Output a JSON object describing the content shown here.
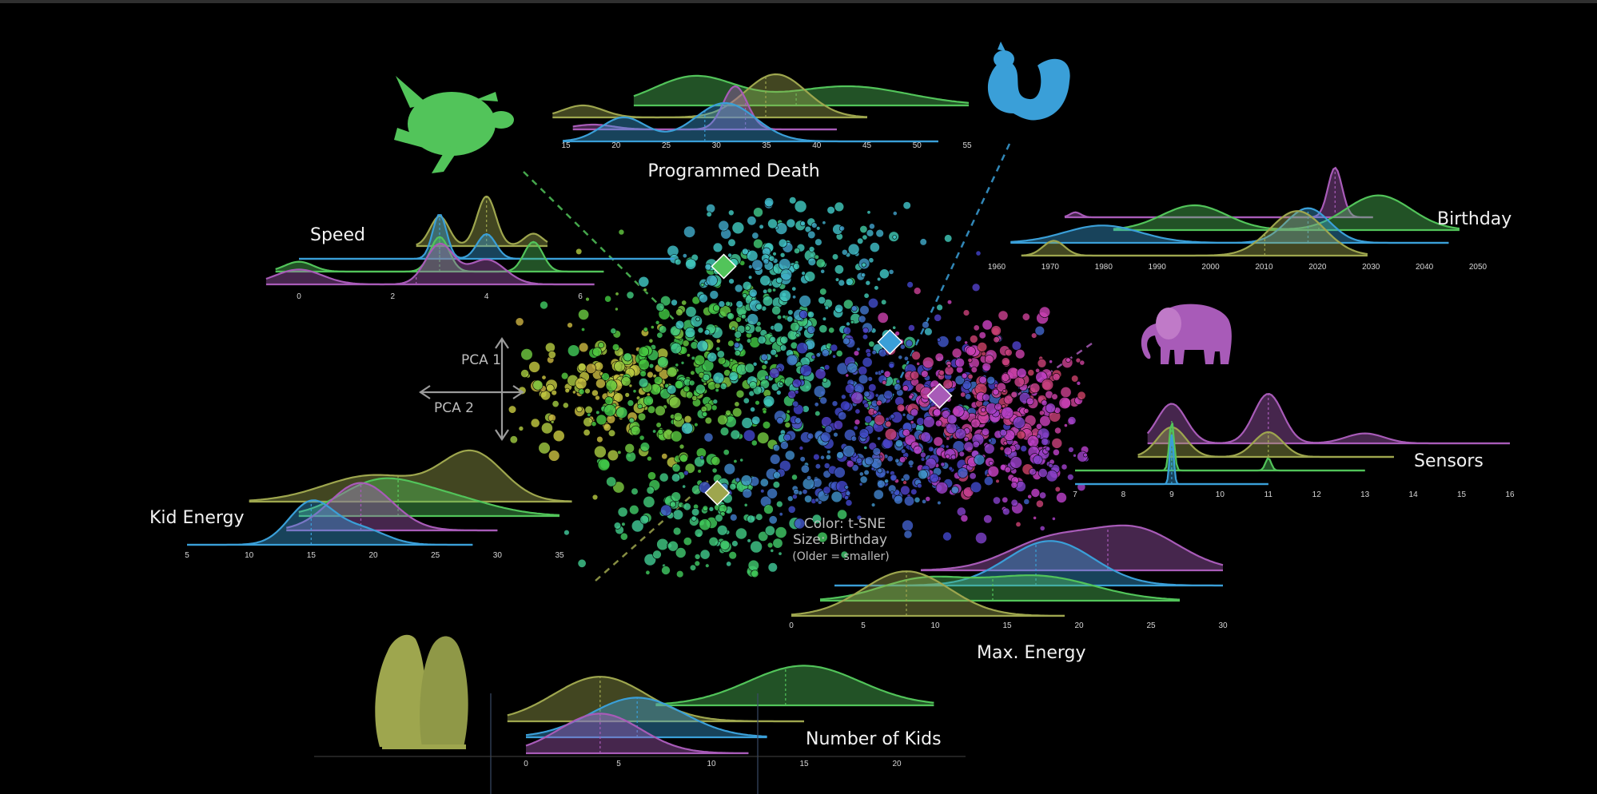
{
  "colors": {
    "turtle": "#52c45a",
    "squirrel": "#3a9fd8",
    "elephant": "#a85bb8",
    "penguin": "#9ea64e",
    "background": "#000000"
  },
  "icons": [
    "turtle-icon",
    "squirrel-icon",
    "elephant-icon",
    "penguin-icon"
  ],
  "chart_data": {
    "type": "scatter",
    "description_free": true,
    "legend": {
      "color": "Color: t-SNE",
      "size": "Size: Birthday",
      "size_note": "(Older = smaller)"
    },
    "pca_axes": {
      "vertical": "PCA 1",
      "horizontal": "PCA 2"
    },
    "species_markers": [
      {
        "species": "turtle",
        "pca2": -0.35,
        "pca1": 0.55
      },
      {
        "species": "squirrel",
        "pca2": 0.42,
        "pca1": 0.2
      },
      {
        "species": "elephant",
        "pca2": 0.65,
        "pca1": -0.05
      },
      {
        "species": "penguin",
        "pca2": -0.38,
        "pca1": -0.5
      }
    ],
    "ridgelines": [
      {
        "title": "Programmed Death",
        "ticks": [
          "15",
          "20",
          "25",
          "30",
          "35",
          "40",
          "45",
          "50",
          "55"
        ],
        "xlim": [
          15,
          55
        ],
        "series": [
          {
            "species": "turtle",
            "peaks": [
              [
                28,
                0.6,
                4
              ],
              [
                43,
                0.4,
                6
              ]
            ],
            "range": [
              22,
              55
            ],
            "median": 38
          },
          {
            "species": "penguin",
            "peaks": [
              [
                17,
                0.25,
                2
              ],
              [
                36,
                0.9,
                3
              ]
            ],
            "range": [
              14,
              45
            ],
            "median": 35
          },
          {
            "species": "elephant",
            "peaks": [
              [
                32,
                0.9,
                1.2
              ],
              [
                18,
                0.1,
                2
              ]
            ],
            "range": [
              16,
              42
            ],
            "median": 33
          },
          {
            "species": "squirrel",
            "peaks": [
              [
                21,
                0.5,
                2.2
              ],
              [
                31,
                0.8,
                3
              ]
            ],
            "range": [
              15,
              52
            ],
            "median": 29
          }
        ]
      },
      {
        "title": "Birthday",
        "ticks": [
          "1960",
          "1970",
          "1980",
          "1990",
          "2000",
          "2010",
          "2020",
          "2030",
          "2040",
          "2050"
        ],
        "xlim": [
          1960,
          2050
        ],
        "series": [
          {
            "species": "elephant",
            "peaks": [
              [
                2023,
                1.0,
                1.3
              ],
              [
                1975,
                0.1,
                1
              ]
            ],
            "range": [
              1973,
              2030
            ],
            "median": 2023
          },
          {
            "species": "turtle",
            "peaks": [
              [
                1997,
                0.5,
                6
              ],
              [
                2031,
                0.7,
                6
              ]
            ],
            "range": [
              1982,
              2046
            ],
            "median": 2020
          },
          {
            "species": "squirrel",
            "peaks": [
              [
                1980,
                0.35,
                7
              ],
              [
                2018,
                0.7,
                4
              ]
            ],
            "range": [
              1963,
              2044
            ],
            "median": 2018
          },
          {
            "species": "penguin",
            "peaks": [
              [
                1971,
                0.3,
                2
              ],
              [
                2016,
                0.9,
                5
              ]
            ],
            "range": [
              1965,
              2029
            ],
            "median": 2010
          }
        ]
      },
      {
        "title": "Speed",
        "ticks": [
          "0",
          "2",
          "4",
          "6"
        ],
        "xlim": [
          0,
          6
        ],
        "series": [
          {
            "species": "penguin",
            "peaks": [
              [
                3,
                0.6,
                0.2
              ],
              [
                4,
                1.0,
                0.2
              ],
              [
                5,
                0.25,
                0.2
              ]
            ],
            "range": [
              2.5,
              5.3
            ],
            "median": 4
          },
          {
            "species": "squirrel",
            "peaks": [
              [
                3,
                0.9,
                0.15
              ],
              [
                4,
                0.5,
                0.2
              ]
            ],
            "range": [
              0,
              8
            ],
            "median": 3
          },
          {
            "species": "turtle",
            "peaks": [
              [
                0,
                0.2,
                0.3
              ],
              [
                3,
                0.7,
                0.2
              ],
              [
                5,
                0.6,
                0.2
              ]
            ],
            "range": [
              -0.5,
              6.5
            ],
            "median": 3
          },
          {
            "species": "elephant",
            "peaks": [
              [
                0,
                0.3,
                0.5
              ],
              [
                3,
                0.8,
                0.3
              ],
              [
                4,
                0.5,
                0.4
              ]
            ],
            "range": [
              -0.7,
              6.3
            ],
            "median": 2.5
          }
        ]
      },
      {
        "title": "Sensors",
        "ticks": [
          "7",
          "8",
          "9",
          "10",
          "11",
          "12",
          "13",
          "14",
          "15",
          "16"
        ],
        "xlim": [
          7,
          16
        ],
        "series": [
          {
            "species": "elephant",
            "peaks": [
              [
                9,
                0.8,
                0.3
              ],
              [
                11,
                1.0,
                0.3
              ],
              [
                13,
                0.2,
                0.4
              ]
            ],
            "range": [
              8.5,
              16
            ],
            "median": 11
          },
          {
            "species": "penguin",
            "peaks": [
              [
                9,
                0.6,
                0.3
              ],
              [
                11,
                0.5,
                0.3
              ]
            ],
            "range": [
              8.3,
              13.6
            ],
            "median": 11
          },
          {
            "species": "turtle",
            "peaks": [
              [
                9,
                1.0,
                0.05
              ],
              [
                11,
                0.25,
                0.06
              ]
            ],
            "range": [
              7,
              13
            ],
            "median": 9
          },
          {
            "species": "squirrel",
            "peaks": [
              [
                9,
                1.0,
                0.04
              ]
            ],
            "range": [
              7,
              11
            ],
            "median": 9
          }
        ]
      },
      {
        "title": "Kid Energy",
        "ticks": [
          "5",
          "10",
          "15",
          "20",
          "25",
          "30",
          "35"
        ],
        "xlim": [
          5,
          35
        ],
        "series": [
          {
            "species": "penguin",
            "peaks": [
              [
                20,
                0.5,
                4
              ],
              [
                28,
                0.9,
                2.5
              ]
            ],
            "range": [
              10,
              36
            ],
            "median": 22
          },
          {
            "species": "turtle",
            "peaks": [
              [
                20,
                0.5,
                3
              ],
              [
                25,
                0.4,
                4
              ]
            ],
            "range": [
              14,
              35
            ],
            "median": 22
          },
          {
            "species": "elephant",
            "peaks": [
              [
                19,
                0.9,
                2.5
              ]
            ],
            "range": [
              13,
              30
            ],
            "median": 19
          },
          {
            "species": "squirrel",
            "peaks": [
              [
                15,
                0.8,
                1.8
              ],
              [
                19,
                0.3,
                2
              ]
            ],
            "range": [
              5,
              28
            ],
            "median": 15
          }
        ]
      },
      {
        "title": "Max. Energy",
        "ticks": [
          "0",
          "5",
          "10",
          "15",
          "20",
          "25",
          "30"
        ],
        "xlim": [
          0,
          30
        ],
        "series": [
          {
            "species": "elephant",
            "peaks": [
              [
                18,
                0.6,
                3
              ],
              [
                24,
                0.8,
                3
              ]
            ],
            "range": [
              9,
              30
            ],
            "median": 22
          },
          {
            "species": "squirrel",
            "peaks": [
              [
                18,
                0.9,
                3
              ]
            ],
            "range": [
              3,
              30
            ],
            "median": 17
          },
          {
            "species": "turtle",
            "peaks": [
              [
                9,
                0.4,
                3
              ],
              [
                17,
                0.5,
                4
              ]
            ],
            "range": [
              2,
              27
            ],
            "median": 14
          },
          {
            "species": "penguin",
            "peaks": [
              [
                8,
                0.9,
                3
              ]
            ],
            "range": [
              0,
              19
            ],
            "median": 8
          }
        ]
      },
      {
        "title": "Number of Kids",
        "ticks": [
          "0",
          "5",
          "10",
          "15",
          "20"
        ],
        "xlim": [
          0,
          20
        ],
        "series": [
          {
            "species": "turtle",
            "peaks": [
              [
                15,
                0.8,
                3
              ]
            ],
            "range": [
              7,
              22
            ],
            "median": 14
          },
          {
            "species": "penguin",
            "peaks": [
              [
                4,
                0.9,
                2.5
              ]
            ],
            "range": [
              -1,
              15
            ],
            "median": 4
          },
          {
            "species": "squirrel",
            "peaks": [
              [
                6,
                0.8,
                2.5
              ]
            ],
            "range": [
              0,
              13
            ],
            "median": 6
          },
          {
            "species": "elephant",
            "peaks": [
              [
                4,
                0.8,
                2.2
              ]
            ],
            "range": [
              0,
              12
            ],
            "median": 4
          }
        ]
      }
    ]
  }
}
